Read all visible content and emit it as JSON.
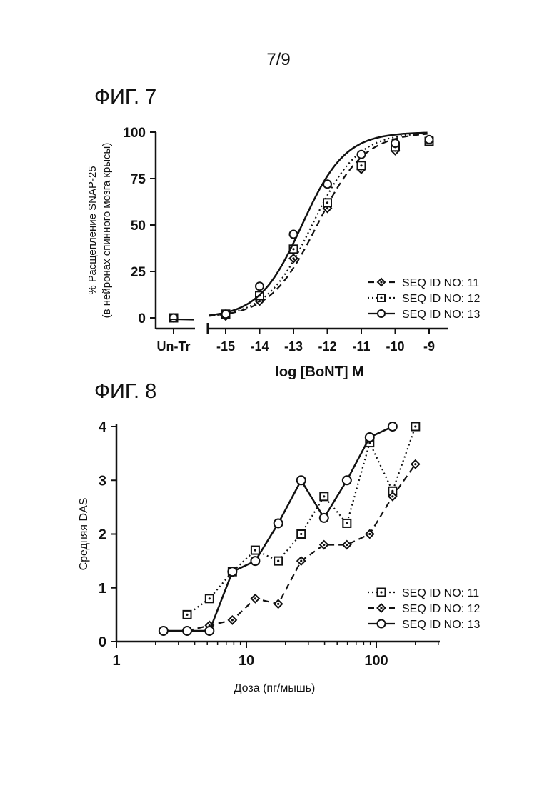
{
  "page": {
    "number": "7/9"
  },
  "figures": [
    {
      "label": "ФИГ. 7",
      "chart_data": {
        "type": "line",
        "xlabel": "log [BoNT] M",
        "ylabel": "% Расщепление SNAP-25",
        "ylabel_line2": "(в нейронах спинного мозга крысы)",
        "x_ticks": [
          "-15",
          "-14",
          "-13",
          "-12",
          "-11",
          "-10",
          "-9"
        ],
        "x_untreated_label": "Un-Tr",
        "y_ticks": [
          "0",
          "25",
          "50",
          "75",
          "100"
        ],
        "ylim": [
          0,
          100
        ],
        "xlim": [
          -15.5,
          -8.5
        ],
        "legend_position": "bottom-right",
        "grid": false,
        "series": [
          {
            "name": "SEQ ID NO: 11",
            "marker": "diamond",
            "line": "dashed",
            "untreated": 0,
            "x": [
              -15,
              -14,
              -13,
              -12,
              -11,
              -10,
              -9
            ],
            "y": [
              1,
              9,
              32,
              59,
              80,
              90,
              95
            ]
          },
          {
            "name": "SEQ ID NO: 12",
            "marker": "square",
            "line": "dotted",
            "untreated": 0,
            "x": [
              -15,
              -14,
              -13,
              -12,
              -11,
              -10,
              -9
            ],
            "y": [
              2,
              12,
              37,
              62,
              82,
              92,
              95
            ]
          },
          {
            "name": "SEQ ID NO: 13",
            "marker": "circle",
            "line": "solid",
            "untreated": 0,
            "x": [
              -15,
              -14,
              -13,
              -12,
              -11,
              -10,
              -9
            ],
            "y": [
              2,
              17,
              45,
              72,
              88,
              94,
              96
            ]
          }
        ]
      }
    },
    {
      "label": "ФИГ. 8",
      "chart_data": {
        "type": "line",
        "xlabel": "Доза (пг/мышь)",
        "ylabel": "Средняя DAS",
        "x_scale": "log",
        "x_ticks": [
          "1",
          "10",
          "100"
        ],
        "xlim": [
          1,
          300
        ],
        "y_ticks": [
          "0",
          "1",
          "2",
          "3",
          "4"
        ],
        "ylim": [
          0,
          4
        ],
        "legend_position": "bottom-right",
        "grid": false,
        "series": [
          {
            "name": "SEQ ID NO: 11",
            "marker": "square",
            "line": "dotted",
            "x": [
              3.5,
              5.2,
              7.8,
              11.7,
              17.6,
              26.4,
              39.6,
              59.4,
              89,
              133.5,
              200
            ],
            "y": [
              0.5,
              0.8,
              1.3,
              1.7,
              1.5,
              2.0,
              2.7,
              2.2,
              3.7,
              2.8,
              4.0
            ]
          },
          {
            "name": "SEQ ID NO: 12",
            "marker": "diamond",
            "line": "dashed",
            "x": [
              3.5,
              5.2,
              7.8,
              11.7,
              17.6,
              26.4,
              39.6,
              59.4,
              89,
              133.5,
              200
            ],
            "y": [
              0.2,
              0.3,
              0.4,
              0.8,
              0.7,
              1.5,
              1.8,
              1.8,
              2.0,
              2.7,
              3.3
            ]
          },
          {
            "name": "SEQ ID NO: 13",
            "marker": "circle",
            "line": "solid",
            "x": [
              2.3,
              3.5,
              5.2,
              7.8,
              11.7,
              17.6,
              26.4,
              39.6,
              59.4,
              89,
              133.5
            ],
            "y": [
              0.2,
              0.2,
              0.2,
              1.3,
              1.5,
              2.2,
              3.0,
              2.3,
              3.0,
              3.8,
              4.0
            ]
          }
        ]
      }
    }
  ]
}
